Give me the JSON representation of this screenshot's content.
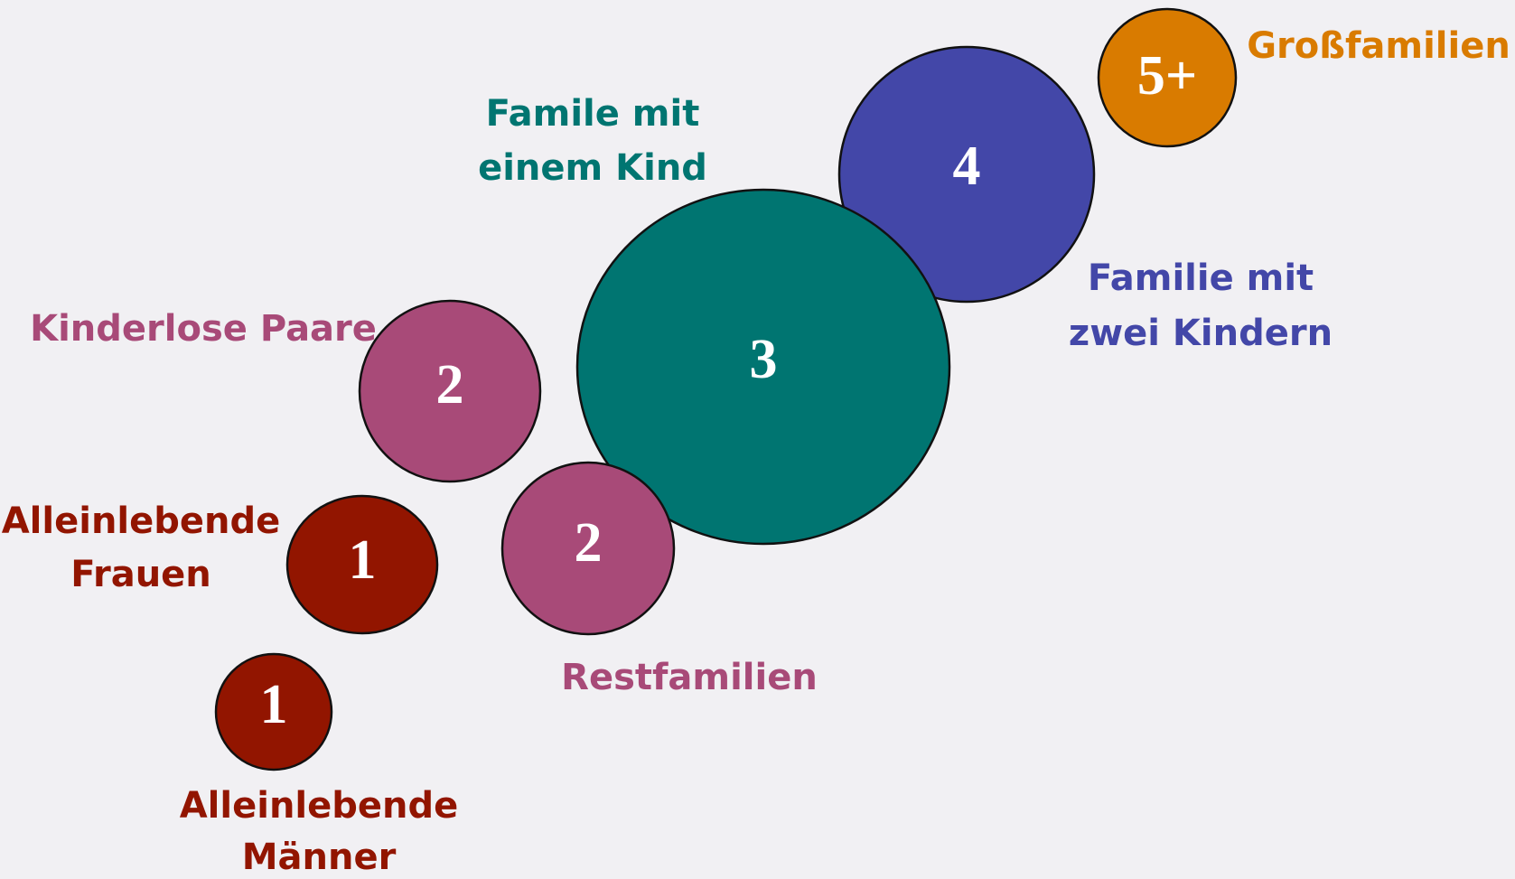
{
  "nodes": [
    {
      "number": "5+",
      "label": [
        "Großfamilien"
      ]
    },
    {
      "number": "4",
      "label": [
        "Familie mit",
        "zwei Kindern"
      ]
    },
    {
      "number": "3",
      "label": [
        "Famile mit",
        "einem Kind"
      ]
    },
    {
      "number": "2",
      "label": [
        "Kinderlose Paare"
      ]
    },
    {
      "number": "2",
      "label": [
        "Restfamilien"
      ]
    },
    {
      "number": "1",
      "label": [
        "Alleinlebende",
        "Frauen"
      ]
    },
    {
      "number": "1",
      "label": [
        "Alleinlebende",
        "Männer"
      ]
    }
  ]
}
